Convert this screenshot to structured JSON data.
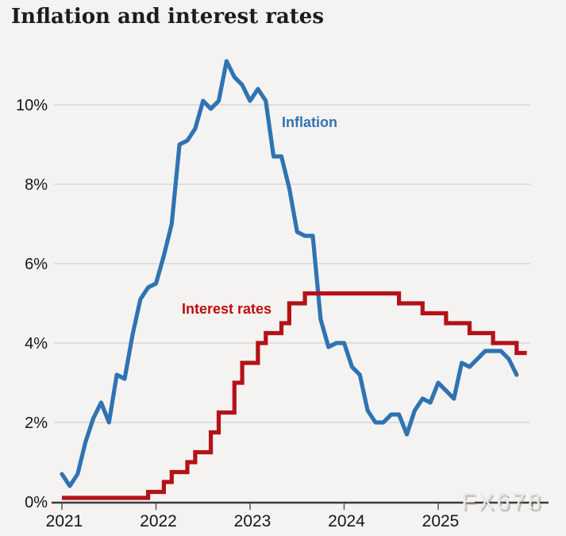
{
  "header": {
    "title": "Inflation and interest rates"
  },
  "watermark": {
    "text": "FX678"
  },
  "colors": {
    "background": "#f4f3f1",
    "gridline": "#d9d7d4",
    "axis": "#3a3a3c",
    "tick": "#5f5f5f",
    "tick_label": "#161616",
    "inflation": "#2f73b3",
    "interest": "#b41118"
  },
  "chart_data": {
    "type": "line",
    "title": "Inflation and interest rates",
    "grid": true,
    "legend": "inline-labels",
    "ylim": [
      0,
      11.5
    ],
    "x_unit": "months-from-2021-01",
    "y_ticks": [
      {
        "label": "0%",
        "value": 0
      },
      {
        "label": "2%",
        "value": 2
      },
      {
        "label": "4%",
        "value": 4
      },
      {
        "label": "6%",
        "value": 6
      },
      {
        "label": "8%",
        "value": 8
      },
      {
        "label": "10%",
        "value": 10
      }
    ],
    "x_ticks": [
      {
        "label": "2021",
        "month": 0
      },
      {
        "label": "2022",
        "month": 12
      },
      {
        "label": "2023",
        "month": 24
      },
      {
        "label": "2024",
        "month": 36
      },
      {
        "label": "2025",
        "month": 48
      },
      {
        "label": "",
        "month": 60
      }
    ],
    "series": [
      {
        "name": "Inflation",
        "type": "line",
        "color": "#2f73b3",
        "start_month": 0,
        "monthly_values": [
          0.7,
          0.4,
          0.7,
          1.5,
          2.1,
          2.5,
          2.0,
          3.2,
          3.1,
          4.2,
          5.1,
          5.4,
          5.5,
          6.2,
          7.0,
          9.0,
          9.1,
          9.4,
          10.1,
          9.9,
          10.1,
          11.1,
          10.7,
          10.5,
          10.1,
          10.4,
          10.1,
          8.7,
          8.7,
          7.9,
          6.8,
          6.7,
          6.7,
          4.6,
          3.9,
          4.0,
          4.0,
          3.4,
          3.2,
          2.3,
          2.0,
          2.0,
          2.2,
          2.2,
          1.7,
          2.3,
          2.6,
          2.5,
          3.0,
          2.8,
          2.6,
          3.5,
          3.4,
          3.6,
          3.8,
          3.8,
          3.8,
          3.6,
          3.2
        ]
      },
      {
        "name": "Interest rates",
        "type": "step",
        "color": "#b41118",
        "points_month_value": [
          [
            0,
            0.1
          ],
          [
            11,
            0.25
          ],
          [
            13,
            0.5
          ],
          [
            14,
            0.75
          ],
          [
            16,
            1.0
          ],
          [
            17,
            1.25
          ],
          [
            19,
            1.75
          ],
          [
            20,
            2.25
          ],
          [
            22,
            3.0
          ],
          [
            23,
            3.5
          ],
          [
            25,
            4.0
          ],
          [
            26,
            4.25
          ],
          [
            28,
            4.5
          ],
          [
            29,
            5.0
          ],
          [
            31,
            5.25
          ],
          [
            43,
            5.0
          ],
          [
            46,
            4.75
          ],
          [
            49,
            4.5
          ],
          [
            52,
            4.25
          ],
          [
            55,
            4.0
          ],
          [
            58,
            3.75
          ]
        ],
        "end_month": 59.3
      }
    ]
  }
}
